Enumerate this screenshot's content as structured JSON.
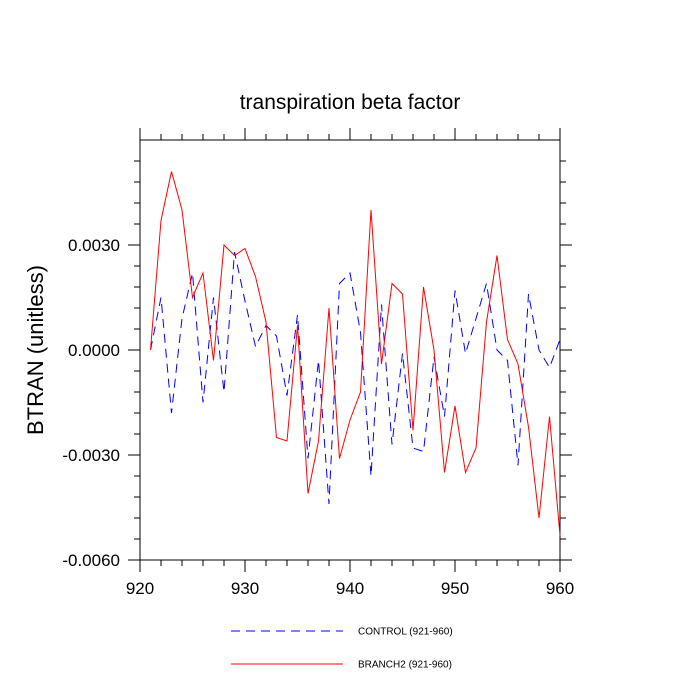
{
  "chart_data": {
    "type": "line",
    "title": "transpiration beta factor",
    "xlabel": "",
    "ylabel": "BTRAN  (unitless)",
    "xlim": [
      920,
      960
    ],
    "ylim": [
      -0.006,
      0.006
    ],
    "x_ticks": [
      920,
      930,
      940,
      950,
      960
    ],
    "x_tick_labels": [
      "920",
      "930",
      "940",
      "950",
      "960"
    ],
    "y_ticks": [
      -0.006,
      -0.003,
      0.0,
      0.003
    ],
    "y_tick_labels": [
      "-0.0060",
      "-0.0030",
      "0.0000",
      "0.0030"
    ],
    "grid": false,
    "legend_position": "bottom",
    "x": [
      921,
      922,
      923,
      924,
      925,
      926,
      927,
      928,
      929,
      930,
      931,
      932,
      933,
      934,
      935,
      936,
      937,
      938,
      939,
      940,
      941,
      942,
      943,
      944,
      945,
      946,
      947,
      948,
      949,
      950,
      951,
      952,
      953,
      954,
      955,
      956,
      957,
      958,
      959,
      960
    ],
    "series": [
      {
        "name": "CONTROL (921-960)",
        "color": "#0000ff",
        "dash": "dashed",
        "values": [
          0.0,
          0.0015,
          -0.0018,
          0.0009,
          0.0022,
          -0.0015,
          0.0015,
          -0.0012,
          0.0028,
          0.0014,
          0.0001,
          0.0007,
          0.0004,
          -0.0013,
          0.001,
          -0.0031,
          -0.0003,
          -0.0044,
          0.0019,
          0.0022,
          0.0005,
          -0.0036,
          0.0013,
          -0.0027,
          -0.0001,
          -0.0028,
          -0.0029,
          -0.0002,
          -0.0019,
          0.0017,
          -0.0001,
          0.0009,
          0.0019,
          0.0,
          -0.0003,
          -0.0033,
          0.0016,
          0.0,
          -0.0005,
          0.0003
        ]
      },
      {
        "name": "BRANCH2 (921-960)",
        "color": "#ff0000",
        "dash": "solid",
        "values": [
          0.0,
          0.0037,
          0.0051,
          0.004,
          0.0015,
          0.0022,
          -0.0003,
          0.003,
          0.0027,
          0.0029,
          0.0021,
          0.0008,
          -0.0025,
          -0.0026,
          0.0007,
          -0.0041,
          -0.0026,
          0.0012,
          -0.0031,
          -0.002,
          -0.0012,
          0.004,
          -0.0004,
          0.0019,
          0.0016,
          -0.0023,
          0.0018,
          0.0,
          -0.0035,
          -0.0016,
          -0.0035,
          -0.0028,
          0.0008,
          0.0027,
          0.0003,
          -0.0004,
          -0.0022,
          -0.0048,
          -0.0019,
          -0.0053
        ]
      }
    ]
  }
}
